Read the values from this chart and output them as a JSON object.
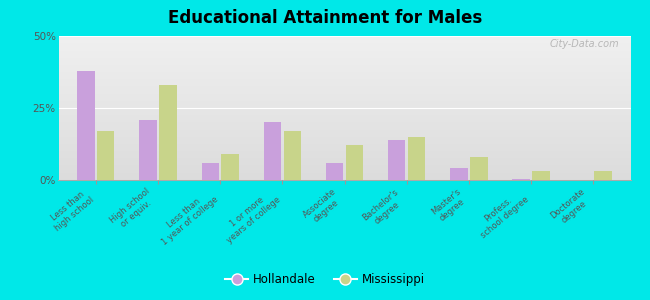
{
  "title": "Educational Attainment for Males",
  "categories": [
    "Less than\nhigh school",
    "High school\nor equiv.",
    "Less than\n1 year of college",
    "1 or more\nyears of college",
    "Associate\ndegree",
    "Bachelor's\ndegree",
    "Master's\ndegree",
    "Profess.\nschool degree",
    "Doctorate\ndegree"
  ],
  "hollandale": [
    38.0,
    21.0,
    6.0,
    20.0,
    6.0,
    14.0,
    4.0,
    0.3,
    0.0
  ],
  "mississippi": [
    17.0,
    33.0,
    9.0,
    17.0,
    12.0,
    15.0,
    8.0,
    3.0,
    3.0
  ],
  "hollandale_color": "#c9a0dc",
  "mississippi_color": "#c8d48a",
  "background_color": "#00e8e8",
  "plot_bg_top": "#f0f4e0",
  "plot_bg_bottom": "#dceacc",
  "ylabel_ticks": [
    "0%",
    "25%",
    "50%"
  ],
  "yticks": [
    0,
    25,
    50
  ],
  "ylim": [
    0,
    50
  ],
  "bar_width": 0.28,
  "legend_labels": [
    "Hollandale",
    "Mississippi"
  ],
  "watermark": "City-Data.com"
}
